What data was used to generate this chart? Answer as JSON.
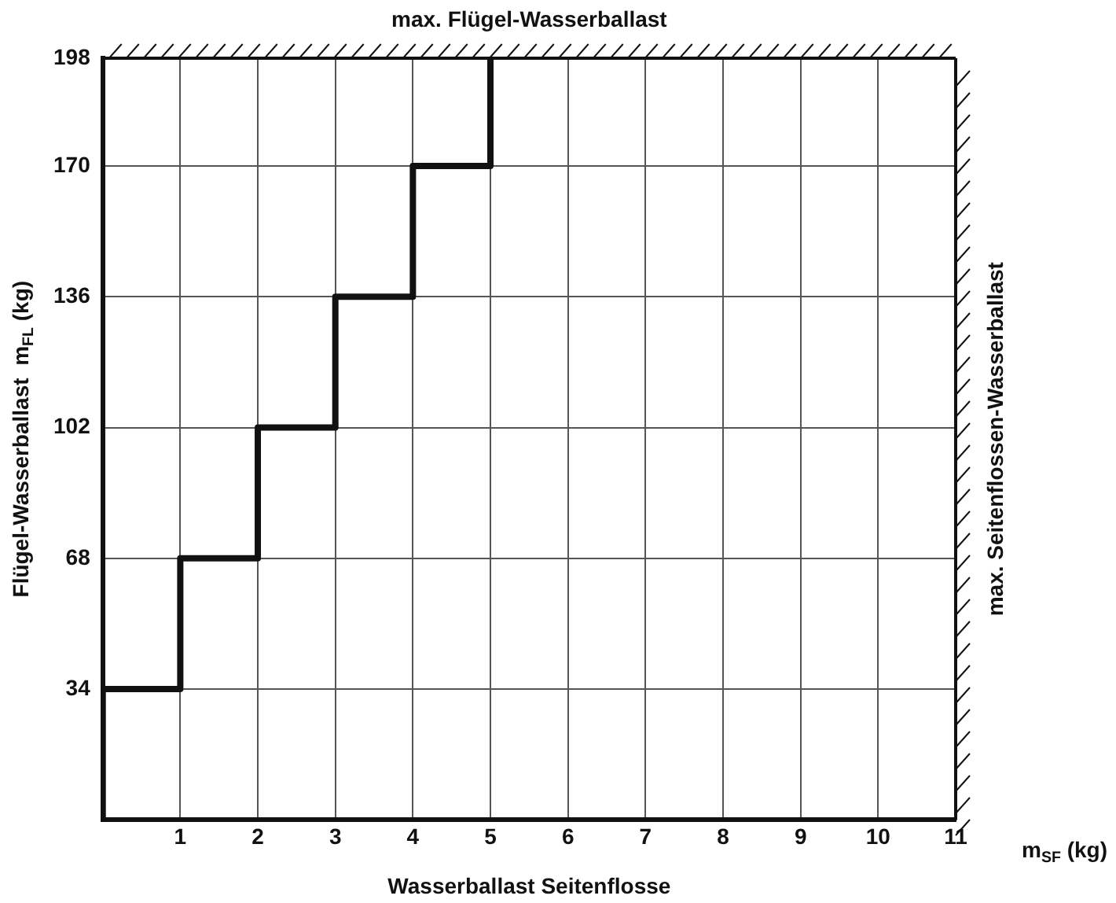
{
  "chart_data": {
    "type": "step",
    "xlabel": "Wasserballast Seitenflosse",
    "ylabel": "Flügel-Wasserballast  m$_{FL}$ (kg)",
    "x": [
      0,
      0,
      1,
      2,
      3,
      4,
      5
    ],
    "series": [
      {
        "color": "#111111",
        "values": [
          0,
          34,
          68,
          102,
          136,
          170,
          198
        ]
      }
    ],
    "xlim": [
      0,
      11
    ],
    "xticks": [
      1,
      2,
      3,
      4,
      5,
      6,
      7,
      8,
      9,
      10,
      11
    ],
    "ylim": [
      0,
      198
    ],
    "yticks": [
      34,
      68,
      102,
      136,
      170,
      198
    ],
    "ref_lines": [
      {
        "axis": "y",
        "value": 198,
        "label": "max. Flügel-Wasserballast"
      },
      {
        "axis": "x",
        "value": 11,
        "label": "max. Seitenflossen-Wasserballast"
      }
    ],
    "annotations": [
      "m$_{SF}$ (kg)"
    ],
    "grid": true,
    "legend": false,
    "marker": "none",
    "line_style": "solid"
  }
}
